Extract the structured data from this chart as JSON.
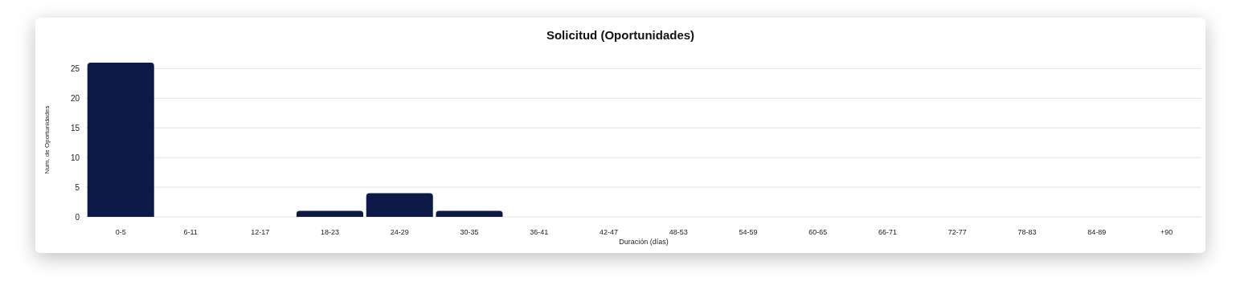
{
  "chart_data": {
    "type": "bar",
    "title": "Solicitud (Oportunidades)",
    "xlabel": "Duración (días)",
    "ylabel": "Num. de Oportunidades",
    "categories": [
      "0-5",
      "6-11",
      "12-17",
      "18-23",
      "24-29",
      "30-35",
      "36-41",
      "42-47",
      "48-53",
      "54-59",
      "60-65",
      "66-71",
      "72-77",
      "78-83",
      "84-89",
      "+90"
    ],
    "values": [
      26,
      0,
      0,
      1,
      4,
      1,
      0,
      0,
      0,
      0,
      0,
      0,
      0,
      0,
      0,
      0
    ],
    "color": "#0d1a48",
    "ylim": [
      0,
      26
    ],
    "yticks": [
      0,
      5,
      10,
      15,
      20,
      25
    ],
    "grid": "y"
  }
}
